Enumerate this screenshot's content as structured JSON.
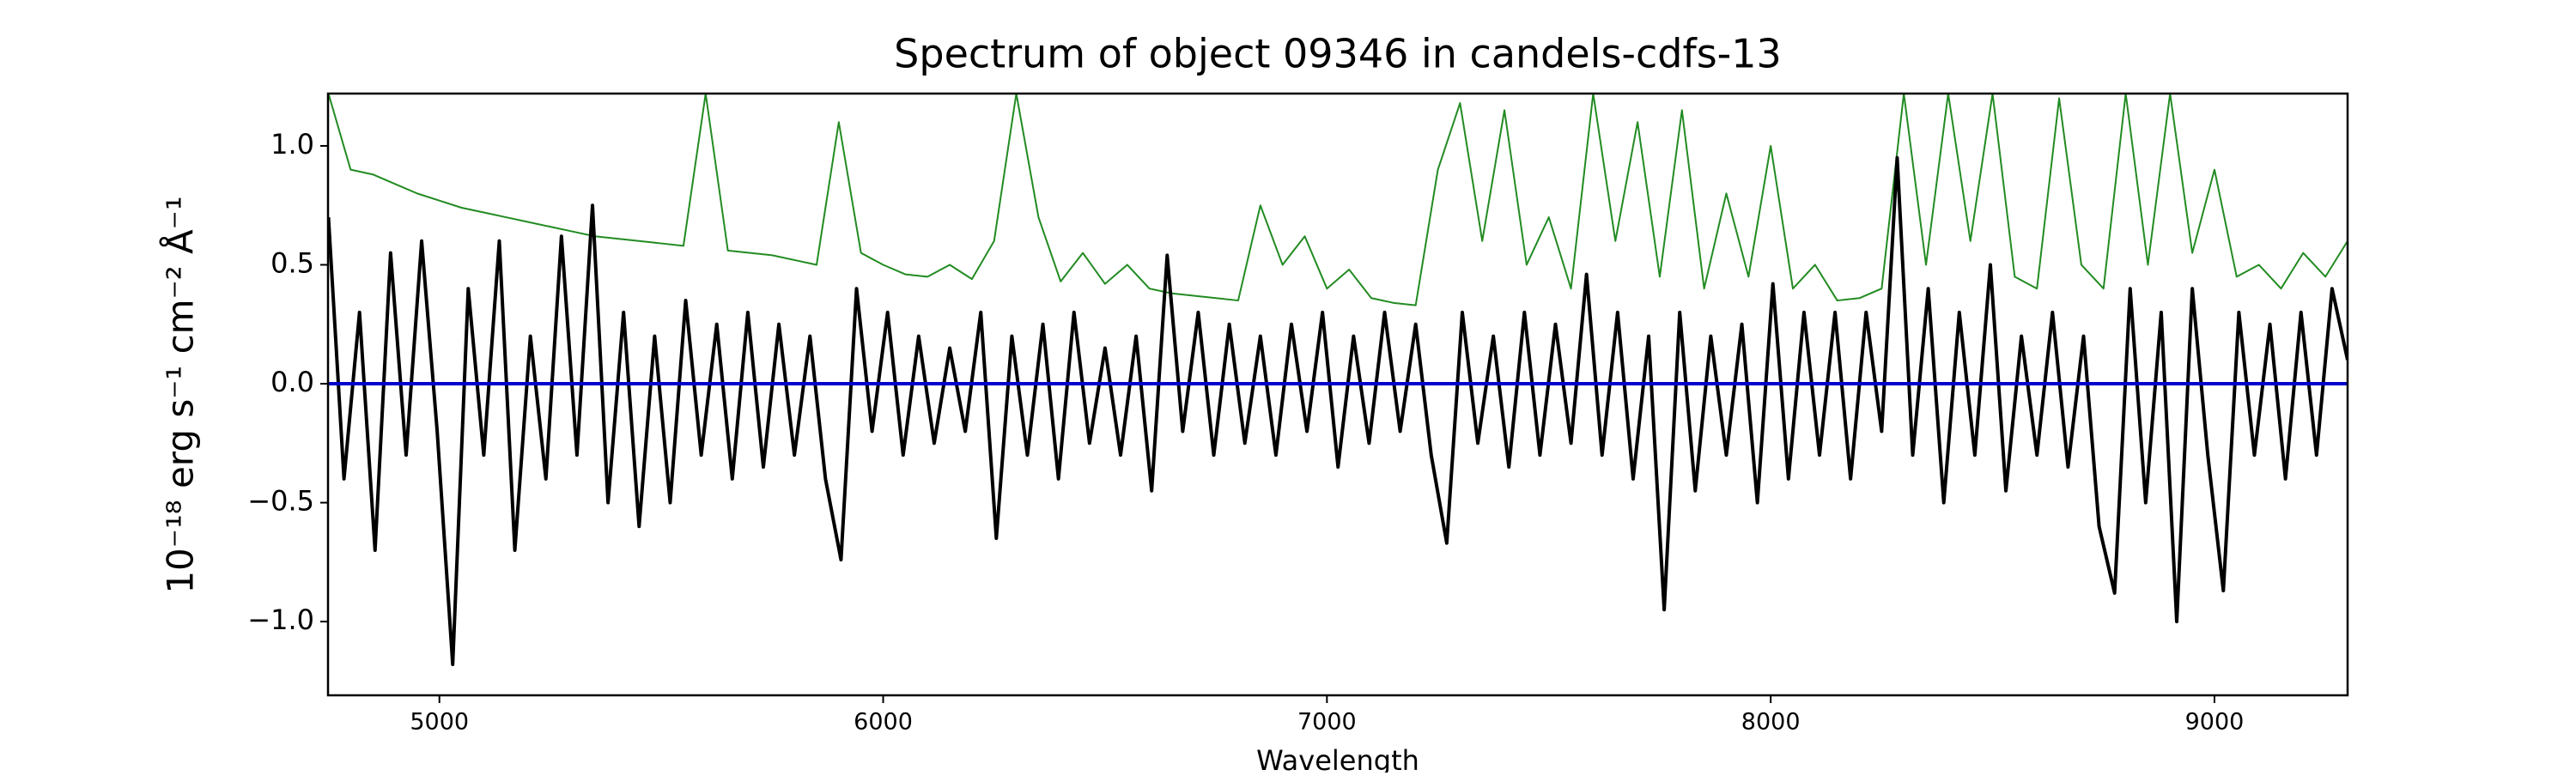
{
  "chart_data": {
    "type": "line",
    "title": "Spectrum of object 09346 in candels-cdfs-13",
    "x_label": "Wavelength",
    "y_label": "10⁻¹⁸ erg s⁻¹ cm⁻² Å⁻¹",
    "xlim": [
      4749,
      9300
    ],
    "ylim": [
      -1.31,
      1.22
    ],
    "xticks": [
      5000,
      6000,
      7000,
      8000,
      9000
    ],
    "yticks": [
      {
        "value": -1.0,
        "label": "−1.0"
      },
      {
        "value": -0.5,
        "label": "−0.5"
      },
      {
        "value": 0.0,
        "label": "0.0"
      },
      {
        "value": 0.5,
        "label": "0.5"
      },
      {
        "value": 1.0,
        "label": "1.0"
      }
    ],
    "grid": false,
    "series": [
      {
        "color": "#228b22",
        "width": 2,
        "x": [
          4750,
          4800,
          4850,
          4900,
          4950,
          5000,
          5050,
          5100,
          5150,
          5200,
          5250,
          5300,
          5350,
          5400,
          5450,
          5500,
          5550,
          5600,
          5650,
          5700,
          5750,
          5800,
          5850,
          5900,
          5950,
          6000,
          6050,
          6100,
          6150,
          6200,
          6250,
          6300,
          6350,
          6400,
          6450,
          6500,
          6550,
          6600,
          6650,
          6700,
          6750,
          6800,
          6850,
          6900,
          6950,
          7000,
          7050,
          7100,
          7150,
          7200,
          7250,
          7300,
          7350,
          7400,
          7450,
          7500,
          7550,
          7600,
          7650,
          7700,
          7750,
          7800,
          7850,
          7900,
          7950,
          8000,
          8050,
          8100,
          8150,
          8200,
          8250,
          8300,
          8350,
          8400,
          8450,
          8500,
          8550,
          8600,
          8650,
          8700,
          8750,
          8800,
          8850,
          8900,
          8950,
          9000,
          9050,
          9100,
          9150,
          9200,
          9250,
          9300
        ],
        "values": [
          1.22,
          0.9,
          0.88,
          0.84,
          0.8,
          0.77,
          0.74,
          0.72,
          0.7,
          0.68,
          0.66,
          0.64,
          0.62,
          0.61,
          0.6,
          0.59,
          0.58,
          1.22,
          0.56,
          0.55,
          0.54,
          0.52,
          0.5,
          1.1,
          0.55,
          0.5,
          0.46,
          0.45,
          0.5,
          0.44,
          0.6,
          1.22,
          0.7,
          0.43,
          0.55,
          0.42,
          0.5,
          0.4,
          0.38,
          0.37,
          0.36,
          0.35,
          0.75,
          0.5,
          0.62,
          0.4,
          0.48,
          0.36,
          0.34,
          0.33,
          0.9,
          1.18,
          0.6,
          1.15,
          0.5,
          0.7,
          0.4,
          1.22,
          0.6,
          1.1,
          0.45,
          1.15,
          0.4,
          0.8,
          0.45,
          1.0,
          0.4,
          0.5,
          0.35,
          0.36,
          0.4,
          1.22,
          0.5,
          1.22,
          0.6,
          1.22,
          0.45,
          0.4,
          1.2,
          0.5,
          0.4,
          1.22,
          0.5,
          1.22,
          0.55,
          0.9,
          0.45,
          0.5,
          0.4,
          0.55,
          0.45,
          0.6
        ]
      },
      {
        "color": "#000000",
        "width": 4,
        "x": [
          4750,
          4785,
          4820,
          4855,
          4890,
          4925,
          4960,
          4995,
          5030,
          5065,
          5100,
          5135,
          5170,
          5205,
          5240,
          5275,
          5310,
          5345,
          5380,
          5415,
          5450,
          5485,
          5520,
          5555,
          5590,
          5625,
          5660,
          5695,
          5730,
          5765,
          5800,
          5835,
          5870,
          5905,
          5940,
          5975,
          6010,
          6045,
          6080,
          6115,
          6150,
          6185,
          6220,
          6255,
          6290,
          6325,
          6360,
          6395,
          6430,
          6465,
          6500,
          6535,
          6570,
          6605,
          6640,
          6675,
          6710,
          6745,
          6780,
          6815,
          6850,
          6885,
          6920,
          6955,
          6990,
          7025,
          7060,
          7095,
          7130,
          7165,
          7200,
          7235,
          7270,
          7305,
          7340,
          7375,
          7410,
          7445,
          7480,
          7515,
          7550,
          7585,
          7620,
          7655,
          7690,
          7725,
          7760,
          7795,
          7830,
          7865,
          7900,
          7935,
          7970,
          8005,
          8040,
          8075,
          8110,
          8145,
          8180,
          8215,
          8250,
          8285,
          8320,
          8355,
          8390,
          8425,
          8460,
          8495,
          8530,
          8565,
          8600,
          8635,
          8670,
          8705,
          8740,
          8775,
          8810,
          8845,
          8880,
          8915,
          8950,
          8985,
          9020,
          9055,
          9090,
          9125,
          9160,
          9195,
          9230,
          9265,
          9300
        ],
        "values": [
          0.7,
          -0.4,
          0.3,
          -0.7,
          0.55,
          -0.3,
          0.6,
          -0.2,
          -1.18,
          0.4,
          -0.3,
          0.6,
          -0.7,
          0.2,
          -0.4,
          0.62,
          -0.3,
          0.75,
          -0.5,
          0.3,
          -0.6,
          0.2,
          -0.5,
          0.35,
          -0.3,
          0.25,
          -0.4,
          0.3,
          -0.35,
          0.25,
          -0.3,
          0.2,
          -0.4,
          -0.74,
          0.4,
          -0.2,
          0.3,
          -0.3,
          0.2,
          -0.25,
          0.15,
          -0.2,
          0.3,
          -0.65,
          0.2,
          -0.3,
          0.25,
          -0.4,
          0.3,
          -0.25,
          0.15,
          -0.3,
          0.2,
          -0.45,
          0.54,
          -0.2,
          0.3,
          -0.3,
          0.25,
          -0.25,
          0.2,
          -0.3,
          0.25,
          -0.2,
          0.3,
          -0.35,
          0.2,
          -0.25,
          0.3,
          -0.2,
          0.25,
          -0.3,
          -0.67,
          0.3,
          -0.25,
          0.2,
          -0.35,
          0.3,
          -0.3,
          0.25,
          -0.25,
          0.46,
          -0.3,
          0.3,
          -0.4,
          0.2,
          -0.95,
          0.3,
          -0.45,
          0.2,
          -0.3,
          0.25,
          -0.5,
          0.42,
          -0.4,
          0.3,
          -0.3,
          0.3,
          -0.4,
          0.3,
          -0.2,
          0.95,
          -0.3,
          0.4,
          -0.5,
          0.3,
          -0.3,
          0.5,
          -0.45,
          0.2,
          -0.3,
          0.3,
          -0.35,
          0.2,
          -0.6,
          -0.88,
          0.4,
          -0.5,
          0.3,
          -1.0,
          0.4,
          -0.3,
          -0.87,
          0.3,
          -0.3,
          0.25,
          -0.4,
          0.3,
          -0.3,
          0.4,
          0.1
        ]
      },
      {
        "color": "#0000cd",
        "width": 4,
        "x": [
          4750,
          9300
        ],
        "values": [
          0,
          0
        ]
      }
    ]
  }
}
